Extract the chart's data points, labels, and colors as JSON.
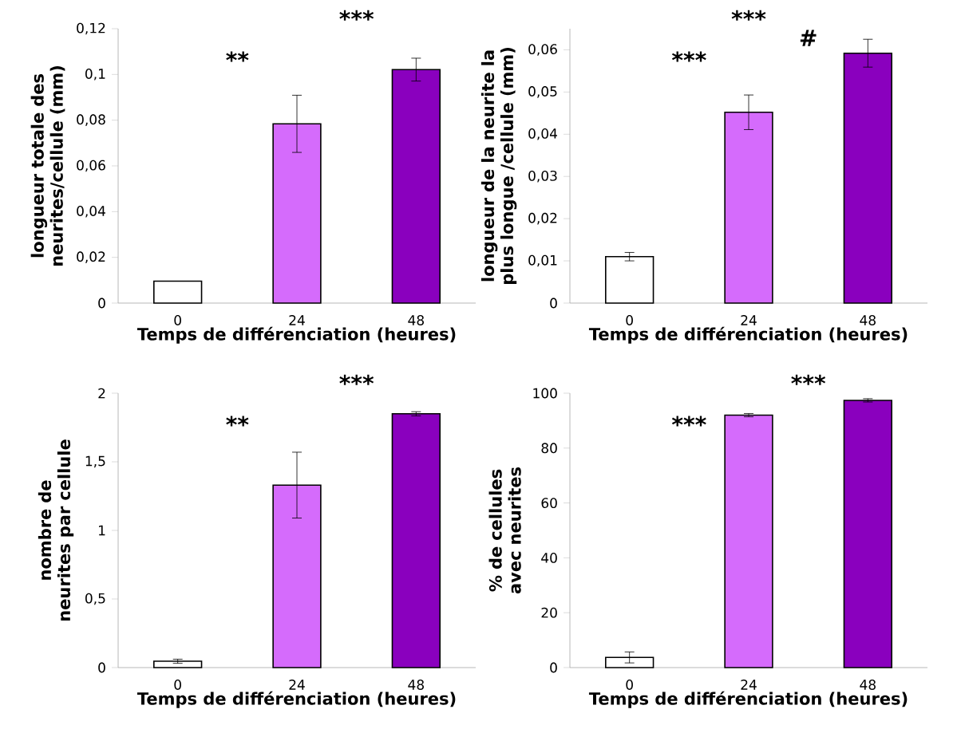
{
  "chart_data": [
    {
      "type": "bar",
      "categories": [
        "0",
        "24",
        "48"
      ],
      "values": [
        0.0096,
        0.0784,
        0.1021
      ],
      "errors": [
        null,
        0.0125,
        0.005
      ],
      "colors": [
        "#ffffff",
        "#d56bfc",
        "#8a00be"
      ],
      "xlabel": "Temps de différenciation (heures)",
      "ylabel": "longueur totale des neurites/cellule (mm)",
      "ylim": [
        0,
        0.12
      ],
      "yticks": [
        0,
        {
          "value": 0.02,
          "label": "0,02"
        },
        {
          "value": 0.04,
          "label": "0,04"
        },
        {
          "value": 0.06,
          "label": "0,06"
        },
        {
          "value": 0.08,
          "label": "0,08"
        },
        {
          "value": 0.1,
          "label": "0,1"
        },
        {
          "value": 0.12,
          "label": "0,12"
        }
      ],
      "annotations": [
        "**",
        "***"
      ]
    },
    {
      "type": "bar",
      "categories": [
        "0",
        "24",
        "48"
      ],
      "values": [
        0.011,
        0.0452,
        0.0592
      ],
      "errors": [
        0.001,
        0.0041,
        0.0033
      ],
      "colors": [
        "#ffffff",
        "#d56bfc",
        "#8a00be"
      ],
      "xlabel": "Temps de différenciation (heures)",
      "ylabel": "longueur de la neurite la plus longue /cellule (mm)",
      "ylim": [
        0,
        0.065
      ],
      "yticks": [
        0,
        {
          "value": 0.01,
          "label": "0,01"
        },
        {
          "value": 0.02,
          "label": "0,02"
        },
        {
          "value": 0.03,
          "label": "0,03"
        },
        {
          "value": 0.04,
          "label": "0,04"
        },
        {
          "value": 0.05,
          "label": "0,05"
        },
        {
          "value": 0.06,
          "label": "0,06"
        }
      ],
      "annotations": [
        "***",
        "***",
        "#"
      ]
    },
    {
      "type": "bar",
      "categories": [
        "0",
        "24",
        "48"
      ],
      "values": [
        0.046,
        1.33,
        1.85
      ],
      "errors": [
        0.015,
        0.24,
        0.015
      ],
      "colors": [
        "#ffffff",
        "#d56bfc",
        "#8a00be"
      ],
      "xlabel": "Temps de différenciation (heures)",
      "ylabel": "nombre de neurites par cellule",
      "ylim": [
        0,
        2
      ],
      "yticks": [
        0,
        {
          "value": 0.5,
          "label": "0,5"
        },
        1,
        {
          "value": 1.5,
          "label": "1,5"
        },
        2
      ],
      "annotations": [
        "**",
        "***"
      ]
    },
    {
      "type": "bar",
      "categories": [
        "0",
        "24",
        "48"
      ],
      "values": [
        3.7,
        92,
        97.4
      ],
      "errors": [
        2,
        0.6,
        0.6
      ],
      "colors": [
        "#ffffff",
        "#d56bfc",
        "#8a00be"
      ],
      "xlabel": "Temps de différenciation (heures)",
      "ylabel": "% de cellules avec neurites",
      "ylim": [
        0,
        100
      ],
      "yticks": [
        0,
        20,
        40,
        60,
        80,
        100
      ],
      "annotations": [
        "***",
        "***"
      ]
    }
  ]
}
